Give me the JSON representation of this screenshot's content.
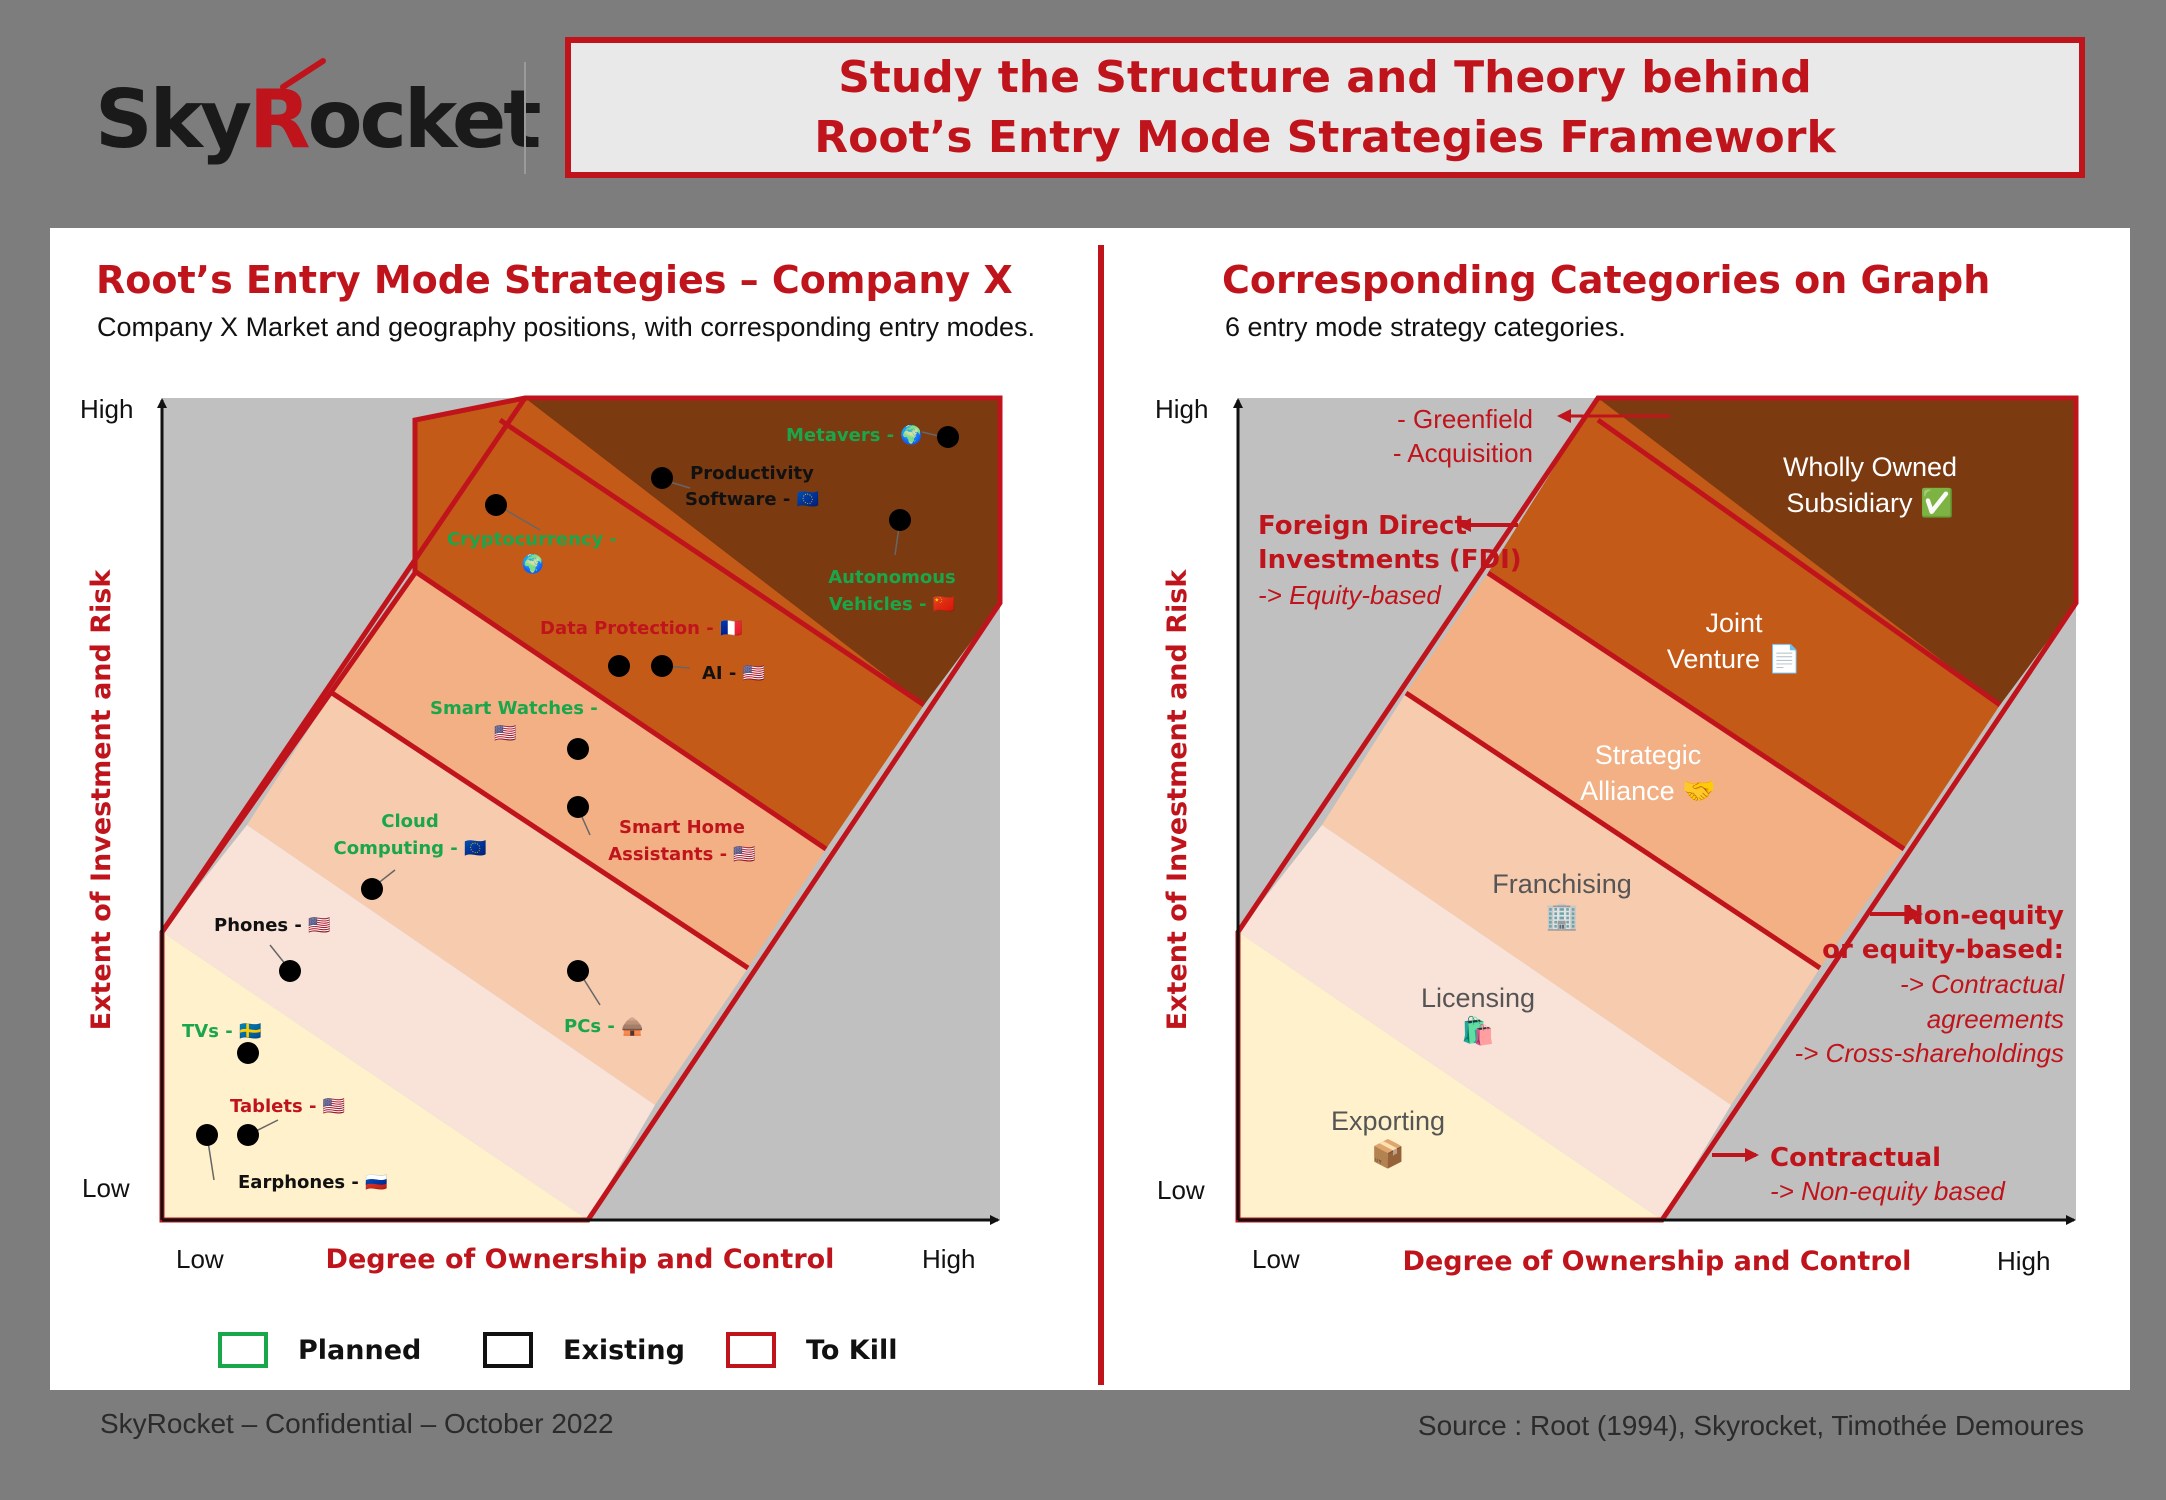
{
  "header": {
    "logo_text_pre": "Sky",
    "logo_text_r": "R",
    "logo_text_post": "ocket",
    "title_line1": "Study the Structure and Theory behind",
    "title_line2": "Root’s Entry Mode Strategies Framework"
  },
  "left": {
    "title": "Root’s Entry Mode Strategies – Company X",
    "subtitle": "Company X Market and geography positions, with corresponding entry modes.",
    "y_high": "High",
    "y_low": "Low",
    "y_axis_label": "Extent of Investment and Risk",
    "x_low": "Low",
    "x_high": "High",
    "x_axis_label": "Degree of Ownership and Control",
    "points": [
      {
        "label": "Metavers -",
        "flag": "🌍",
        "status": "planned"
      },
      {
        "label": "Productivity Software -",
        "flag": "🇪🇺",
        "status": "existing"
      },
      {
        "label": "Cryptocurrency -",
        "flag": "🌍",
        "status": "planned"
      },
      {
        "label": "Autonomous Vehicles -",
        "flag": "🇨🇳",
        "status": "planned"
      },
      {
        "label": "Data Protection -",
        "flag": "🇫🇷",
        "status": "kill"
      },
      {
        "label": "AI -",
        "flag": "🇺🇸",
        "status": "existing"
      },
      {
        "label": "Smart Watches -",
        "flag": "🇺🇸",
        "status": "planned"
      },
      {
        "label": "Smart Home Assistants -",
        "flag": "🇺🇸",
        "status": "kill"
      },
      {
        "label": "Cloud Computing -",
        "flag": "🇪🇺",
        "status": "planned"
      },
      {
        "label": "Phones -",
        "flag": "🇺🇸",
        "status": "existing"
      },
      {
        "label": "PCs -",
        "flag": "🛖",
        "status": "planned"
      },
      {
        "label": "TVs -",
        "flag": "🇸🇪",
        "status": "planned"
      },
      {
        "label": "Tablets -",
        "flag": "🇺🇸",
        "status": "kill"
      },
      {
        "label": "Earphones -",
        "flag": "🇷🇺",
        "status": "existing"
      }
    ],
    "legend": [
      {
        "label": "Planned",
        "color": "#1aa64a"
      },
      {
        "label": "Existing",
        "color": "#111111"
      },
      {
        "label": "To Kill",
        "color": "#c0141c"
      }
    ]
  },
  "right": {
    "title": "Corresponding Categories on Graph",
    "subtitle": "6 entry mode strategy categories.",
    "y_high": "High",
    "y_low": "Low",
    "y_axis_label": "Extent of Investment and Risk",
    "x_low": "Low",
    "x_high": "High",
    "x_axis_label": "Degree of Ownership and Control",
    "bands": [
      {
        "name": "Wholly Owned Subsidiary",
        "line1": "Wholly Owned",
        "line2": "Subsidiary",
        "icon": "✅"
      },
      {
        "name": "Joint Venture",
        "line1": "Joint",
        "line2": "Venture",
        "icon": "📄"
      },
      {
        "name": "Strategic Alliance",
        "line1": "Strategic",
        "line2": "Alliance",
        "icon": "🤝"
      },
      {
        "name": "Franchising",
        "line1": "Franchising",
        "icon": "🏢"
      },
      {
        "name": "Licensing",
        "line1": "Licensing",
        "icon": "🛍️"
      },
      {
        "name": "Exporting",
        "line1": "Exporting",
        "icon": "📦"
      }
    ],
    "annotations": {
      "greenfield": "- Greenfield",
      "acquisition": "- Acquisition",
      "fdi_line1": "Foreign Direct",
      "fdi_line2": "Investments (FDI)",
      "fdi_line3": "-> Equity-based",
      "neq_line1": "Non-equity",
      "neq_line2": "or equity-based:",
      "neq_line3": "-> Contractual",
      "neq_line4": "agreements",
      "neq_line5": "-> Cross-shareholdings",
      "con_line1": "Contractual",
      "con_line2": "-> Non-equity based"
    }
  },
  "footer": {
    "left": "SkyRocket – Confidential – October 2022",
    "right": "Source : Root (1994), Skyrocket, Timothée Demoures"
  },
  "colors": {
    "brand_red": "#c0141c",
    "planned_green": "#1aa64a",
    "band_wholly": "#7b3a10",
    "band_joint": "#c45a18",
    "band_strategic": "#f2b084",
    "band_franchising": "#f6cbae",
    "band_licensing": "#f9e3d8",
    "band_exporting": "#fff1cc",
    "chart_bg": "#c0c0c0"
  }
}
